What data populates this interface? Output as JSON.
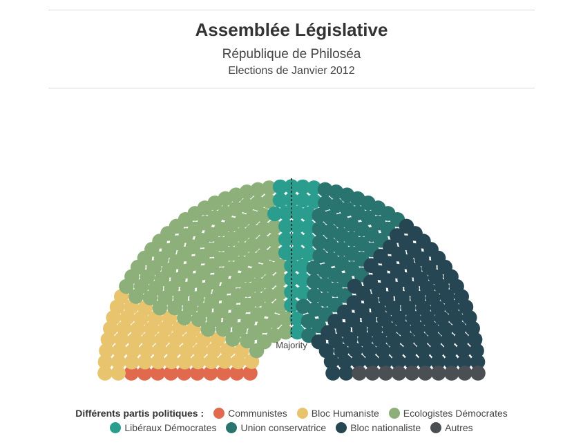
{
  "header": {
    "title": "Assemblée Législative",
    "subtitle": "République de Philoséa",
    "subtitle2": "Elections de Janvier 2012"
  },
  "legend": {
    "title": "Différents partis politiques :"
  },
  "chart_data": {
    "type": "parliament",
    "majority_label": "Majority",
    "parties": [
      {
        "name": "Communistes",
        "seats": 10,
        "color": "#e0694e"
      },
      {
        "name": "Bloc Humaniste",
        "seats": 50,
        "color": "#e8c46f"
      },
      {
        "name": "Ecologistes Démocrates",
        "seats": 125,
        "color": "#8db07a"
      },
      {
        "name": "Libéraux Démocrates",
        "seats": 30,
        "color": "#2a9d8f"
      },
      {
        "name": "Union conservatrice",
        "seats": 55,
        "color": "#2a7470"
      },
      {
        "name": "Bloc nationaliste",
        "seats": 110,
        "color": "#264653"
      },
      {
        "name": "Autres",
        "seats": 10,
        "color": "#4a4f54"
      }
    ]
  }
}
